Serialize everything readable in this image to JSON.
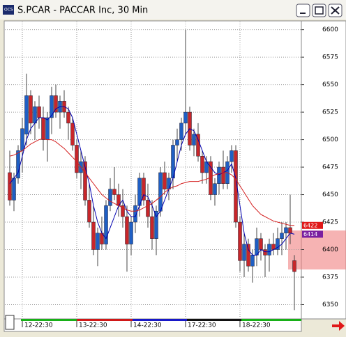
{
  "window": {
    "title": "S.PCAR - PACCAR Inc, 30 Min"
  },
  "chart_data": {
    "type": "candlestick",
    "categories": [
      null,
      null,
      null,
      "12-22:30",
      null,
      null,
      null,
      null,
      null,
      null,
      null,
      null,
      null,
      null,
      null,
      null,
      "13-22:30",
      null,
      null,
      null,
      null,
      null,
      null,
      null,
      null,
      null,
      null,
      null,
      null,
      "14-22:30",
      null,
      null,
      null,
      null,
      null,
      null,
      null,
      null,
      null,
      null,
      null,
      null,
      "17-22:30",
      null,
      null,
      null,
      null,
      null,
      null,
      null,
      null,
      null,
      null,
      null,
      null,
      "18-22:30",
      null,
      null,
      null,
      null,
      null,
      null,
      null,
      null,
      null,
      null,
      null,
      null,
      null
    ],
    "open": [
      6470,
      6445,
      6465,
      6490,
      6505,
      6540,
      6515,
      6530,
      6520,
      6500,
      6520,
      6540,
      6525,
      6535,
      6525,
      6515,
      6495,
      6470,
      6480,
      6445,
      6425,
      6400,
      6415,
      6405,
      6440,
      6455,
      6450,
      6440,
      6430,
      6405,
      6425,
      6440,
      6465,
      6445,
      6430,
      6410,
      6435,
      6470,
      6455,
      6465,
      6495,
      6500,
      6515,
      6525,
      6495,
      6505,
      6485,
      6470,
      6480,
      6450,
      6460,
      6475,
      6460,
      6480,
      6490,
      6425,
      6390,
      6405,
      6385,
      6395,
      6410,
      6400,
      6395,
      6405,
      6400,
      6410,
      6415,
      6420,
      6390
    ],
    "high": [
      6490,
      6470,
      6495,
      6520,
      6560,
      6545,
      6535,
      6540,
      6530,
      6525,
      6548,
      6550,
      6540,
      6545,
      6530,
      6520,
      6500,
      6490,
      6485,
      6460,
      6440,
      6420,
      6430,
      6445,
      6465,
      6475,
      6460,
      6455,
      6440,
      6430,
      6450,
      6470,
      6470,
      6460,
      6445,
      6440,
      6475,
      6480,
      6470,
      6500,
      6510,
      6520,
      6600,
      6530,
      6510,
      6515,
      6490,
      6485,
      6485,
      6465,
      6480,
      6490,
      6485,
      6495,
      6495,
      6430,
      6415,
      6410,
      6400,
      6420,
      6415,
      6405,
      6410,
      6415,
      6420,
      6425,
      6425,
      6450,
      6395
    ],
    "low": [
      6440,
      6435,
      6460,
      6470,
      6495,
      6505,
      6500,
      6510,
      6490,
      6480,
      6505,
      6520,
      6510,
      6520,
      6500,
      6490,
      6465,
      6455,
      6440,
      6420,
      6395,
      6385,
      6400,
      6400,
      6435,
      6445,
      6430,
      6420,
      6380,
      6395,
      6415,
      6430,
      6440,
      6420,
      6400,
      6395,
      6430,
      6450,
      6445,
      6455,
      6480,
      6490,
      6505,
      6490,
      6485,
      6480,
      6460,
      6460,
      6445,
      6440,
      6450,
      6455,
      6455,
      6470,
      6420,
      6380,
      6375,
      6380,
      6370,
      6385,
      6390,
      6375,
      6380,
      6395,
      6395,
      6395,
      6400,
      6405,
      6345
    ],
    "close": [
      6445,
      6465,
      6490,
      6510,
      6540,
      6515,
      6530,
      6520,
      6500,
      6520,
      6540,
      6525,
      6535,
      6525,
      6515,
      6495,
      6470,
      6480,
      6445,
      6425,
      6400,
      6415,
      6405,
      6440,
      6455,
      6450,
      6440,
      6430,
      6405,
      6425,
      6440,
      6465,
      6445,
      6430,
      6410,
      6435,
      6470,
      6455,
      6465,
      6495,
      6500,
      6515,
      6525,
      6495,
      6505,
      6485,
      6470,
      6480,
      6450,
      6460,
      6475,
      6460,
      6480,
      6490,
      6425,
      6390,
      6405,
      6385,
      6395,
      6410,
      6400,
      6395,
      6405,
      6400,
      6410,
      6415,
      6420,
      6415,
      6380
    ],
    "up_color": "#1f5fc4",
    "down_color": "#c8262a",
    "series": [
      {
        "color": "#0000b0",
        "values": [
          6460,
          6465,
          6470,
          6485,
          6500,
          6510,
          6515,
          6520,
          6520,
          6518,
          6522,
          6528,
          6530,
          6530,
          6528,
          6520,
          6505,
          6490,
          6475,
          6460,
          6440,
          6425,
          6415,
          6410,
          6420,
          6430,
          6440,
          6445,
          6435,
          6430,
          6430,
          6440,
          6450,
          6448,
          6440,
          6430,
          6435,
          6445,
          6455,
          6465,
          6480,
          6495,
          6505,
          6510,
          6508,
          6500,
          6490,
          6480,
          6475,
          6470,
          6468,
          6470,
          6472,
          6478,
          6465,
          6440,
          6415,
          6400,
          6395,
          6395,
          6400,
          6398,
          6398,
          6400,
          6402,
          6405,
          6410,
          6415,
          6414
        ],
        "marker_label": "6414",
        "marker_color": "#7a1fa0"
      },
      {
        "color": "#d42020",
        "values": [
          6485,
          6486,
          6488,
          6490,
          6493,
          6496,
          6498,
          6500,
          6501,
          6500,
          6500,
          6498,
          6495,
          6492,
          6488,
          6484,
          6480,
          6475,
          6470,
          6465,
          6460,
          6455,
          6450,
          6447,
          6444,
          6442,
          6440,
          6438,
          6436,
          6435,
          6435,
          6436,
          6438,
          6440,
          6442,
          6445,
          6448,
          6452,
          6455,
          6457,
          6458,
          6460,
          6461,
          6462,
          6462,
          6462,
          6463,
          6464,
          6466,
          6468,
          6469,
          6470,
          6470,
          6468,
          6464,
          6458,
          6452,
          6446,
          6440,
          6436,
          6432,
          6430,
          6428,
          6426,
          6425,
          6424,
          6423,
          6422,
          6422
        ],
        "marker_label": "6422",
        "marker_color": "#e01818"
      }
    ],
    "ylim": [
      6337,
      6608
    ],
    "yticks": [
      6350,
      6375,
      6400,
      6425,
      6450,
      6475,
      6500,
      6525,
      6550,
      6575,
      6600
    ],
    "grid": true
  }
}
